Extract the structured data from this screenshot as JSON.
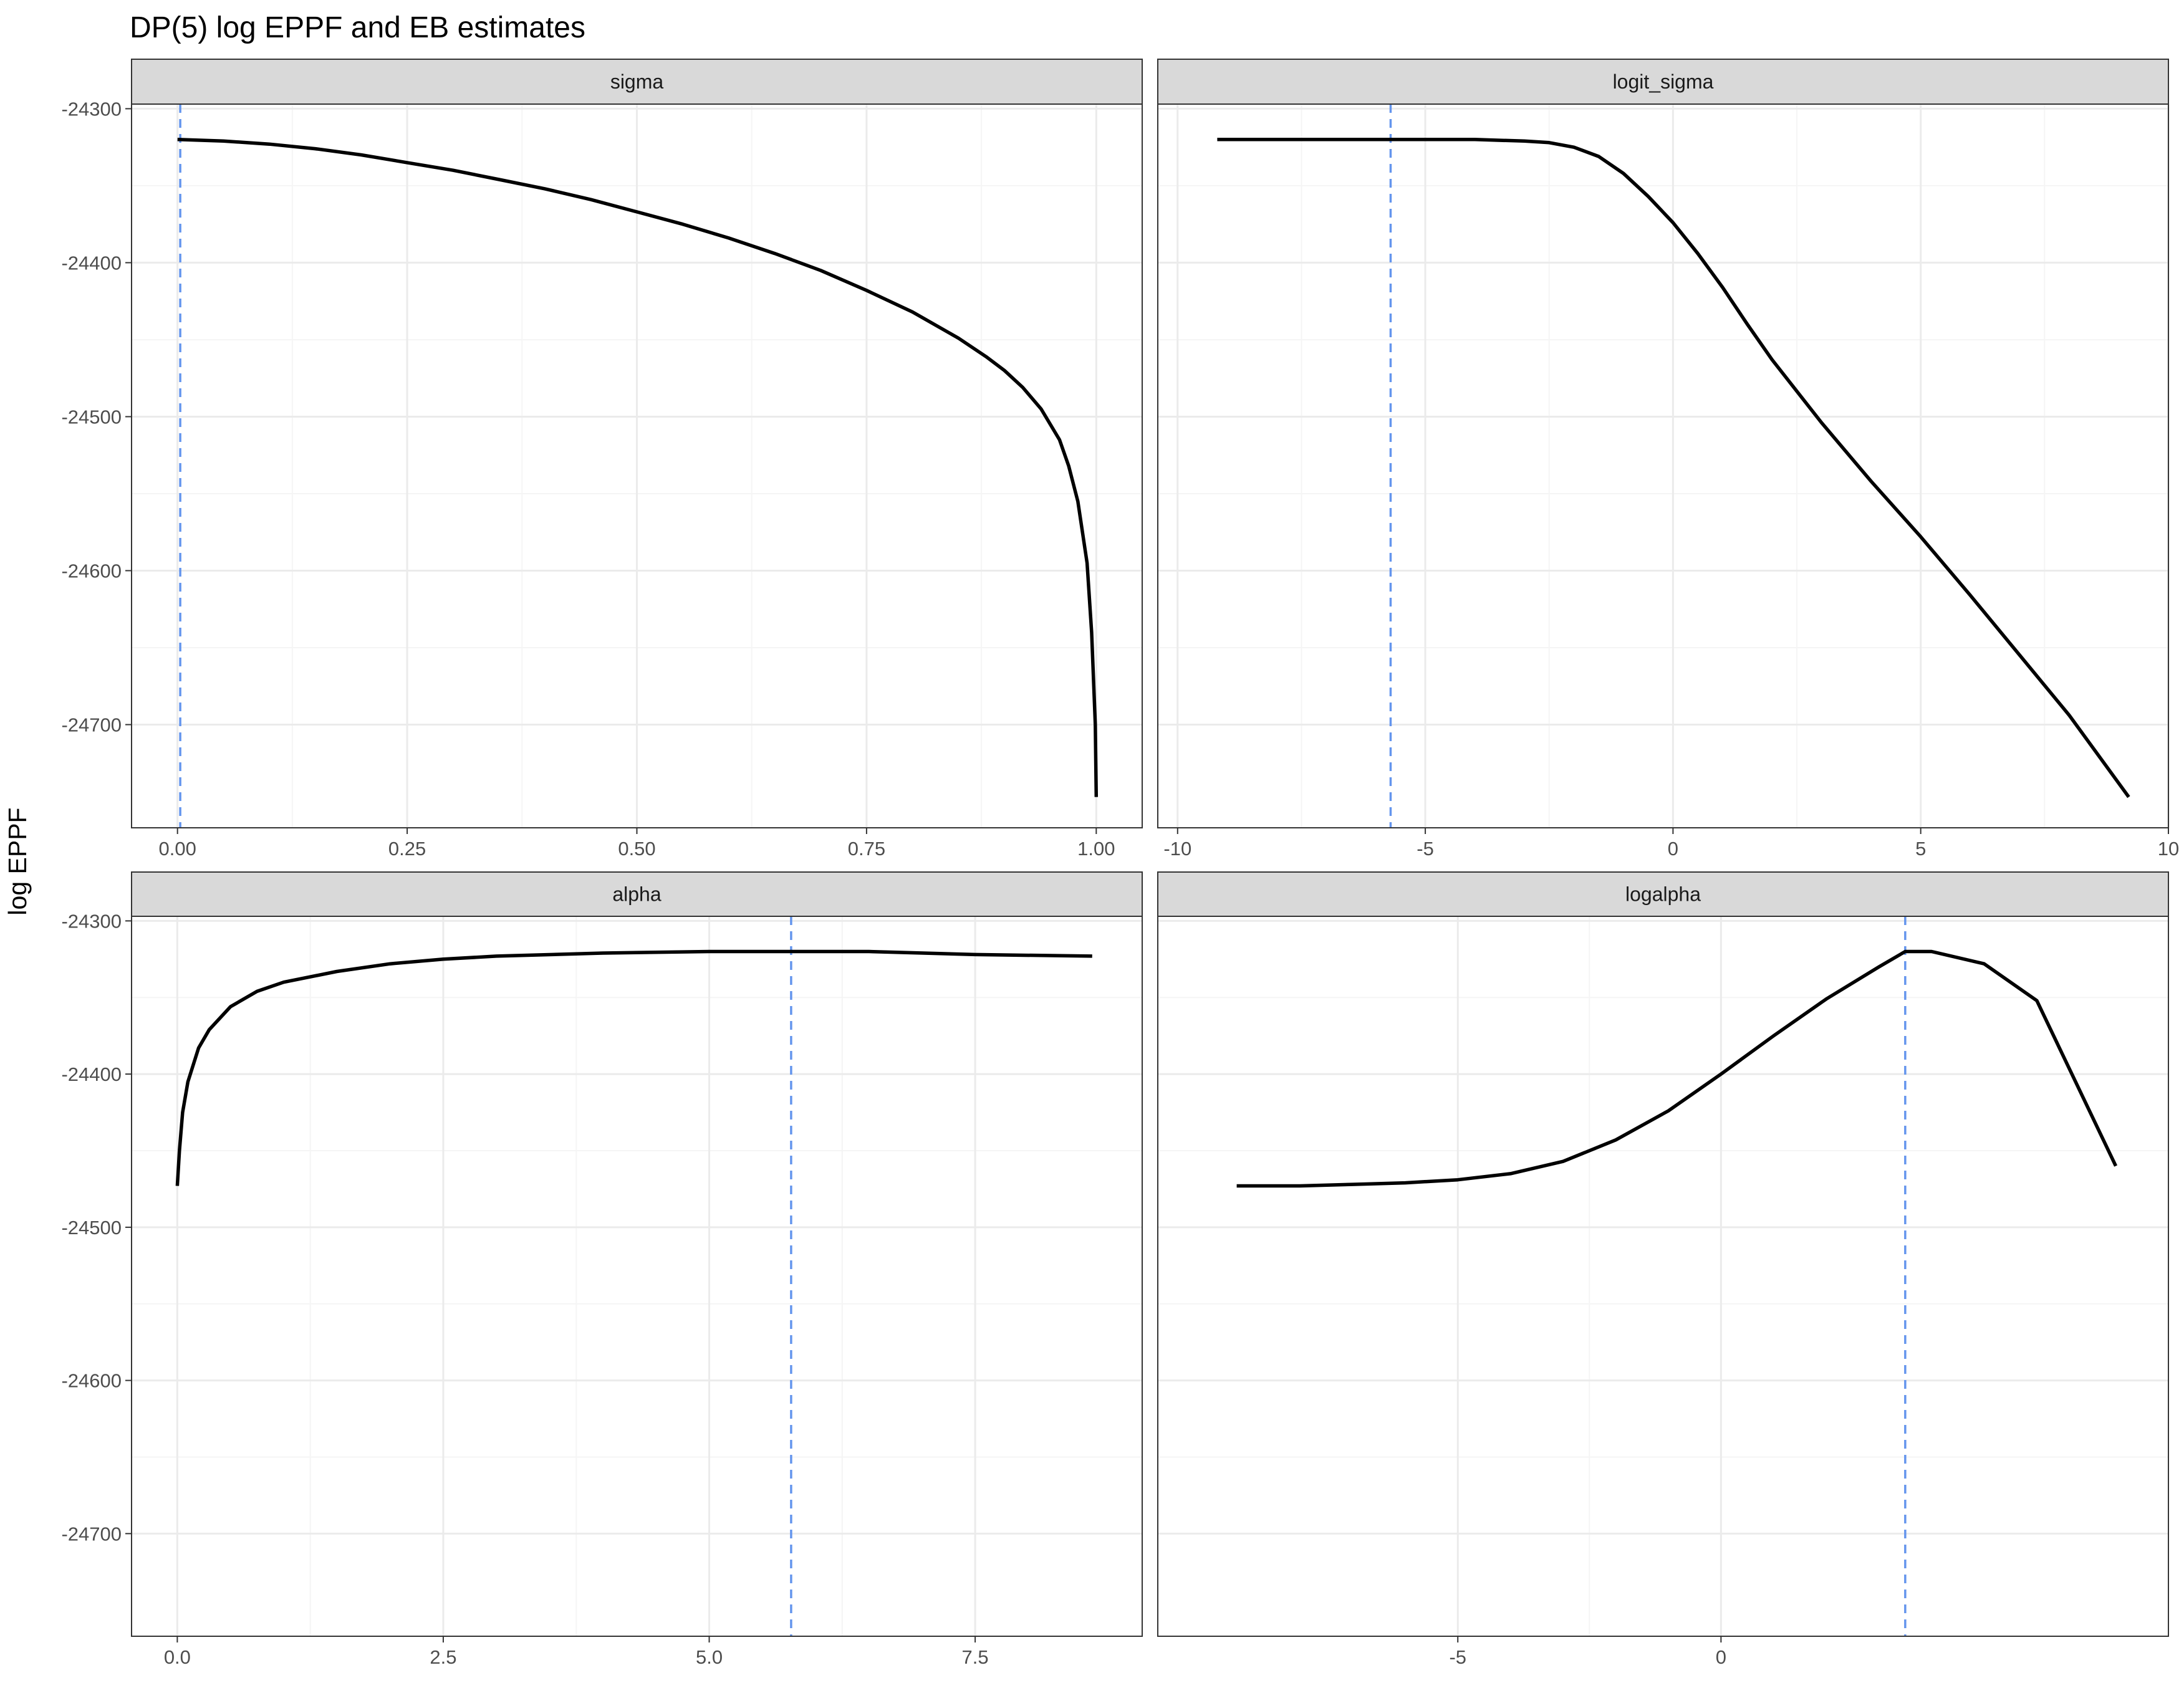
{
  "title": "DP(5) log EPPF and EB estimates",
  "ylabel": "log EPPF",
  "colors": {
    "curve": "#000000",
    "estimate_line": "#6495ED",
    "strip_fill": "#D9D9D9",
    "panel_border": "#333333",
    "grid_major": "#EBEBEB",
    "grid_minor": "#F5F5F5"
  },
  "chart_data": [
    {
      "type": "line",
      "facet": "sigma",
      "ylim": [
        -24767,
        -24297
      ],
      "y_ticks": [
        -24300,
        -24400,
        -24500,
        -24600,
        -24700
      ],
      "xlim": [
        -0.05,
        1.05
      ],
      "x_ticks": [
        0.0,
        0.25,
        0.5,
        0.75,
        1.0
      ],
      "x_tick_labels": [
        "0.00",
        "0.25",
        "0.50",
        "0.75",
        "1.00"
      ],
      "estimate_x": 0.003,
      "x": [
        0.0,
        0.05,
        0.1,
        0.15,
        0.2,
        0.25,
        0.3,
        0.35,
        0.4,
        0.45,
        0.5,
        0.55,
        0.6,
        0.65,
        0.7,
        0.75,
        0.8,
        0.85,
        0.88,
        0.9,
        0.92,
        0.94,
        0.96,
        0.97,
        0.98,
        0.99,
        0.995,
        0.999,
        1.0
      ],
      "y": [
        -24320,
        -24321,
        -24323,
        -24326,
        -24330,
        -24335,
        -24340,
        -24346,
        -24352,
        -24359,
        -24367,
        -24375,
        -24384,
        -24394,
        -24405,
        -24418,
        -24432,
        -24449,
        -24461,
        -24470,
        -24481,
        -24495,
        -24515,
        -24532,
        -24555,
        -24595,
        -24640,
        -24700,
        -24747
      ]
    },
    {
      "type": "line",
      "facet": "logit_sigma",
      "ylim": [
        -24767,
        -24297
      ],
      "y_ticks": [
        -24300,
        -24400,
        -24500,
        -24600,
        -24700
      ],
      "xlim": [
        -10.4,
        10.0
      ],
      "x_ticks": [
        -10,
        -5,
        0,
        5,
        10
      ],
      "x_tick_labels": [
        "-10",
        "-5",
        "0",
        "5",
        "10"
      ],
      "estimate_x": -5.7,
      "x": [
        -9.2,
        -8,
        -6,
        -4,
        -3,
        -2.5,
        -2,
        -1.5,
        -1,
        -0.5,
        0,
        0.5,
        1,
        1.5,
        2,
        3,
        4,
        5,
        6,
        7,
        8,
        9.2
      ],
      "y": [
        -24320,
        -24320,
        -24320,
        -24320,
        -24321,
        -24322,
        -24325,
        -24331,
        -24342,
        -24357,
        -24374,
        -24394,
        -24416,
        -24440,
        -24463,
        -24504,
        -24542,
        -24578,
        -24616,
        -24655,
        -24694,
        -24747
      ]
    },
    {
      "type": "line",
      "facet": "alpha",
      "ylim": [
        -24767,
        -24297
      ],
      "y_ticks": [
        -24300,
        -24400,
        -24500,
        -24600,
        -24700
      ],
      "xlim": [
        -0.43,
        9.07
      ],
      "x_ticks": [
        0,
        2.5,
        5,
        7.5
      ],
      "x_tick_labels": [
        "0.0",
        "2.5",
        "5.0",
        "7.5"
      ],
      "estimate_x": 5.77,
      "x": [
        0.0,
        0.02,
        0.05,
        0.1,
        0.2,
        0.3,
        0.5,
        0.75,
        1,
        1.5,
        2,
        2.5,
        3,
        4,
        5,
        5.77,
        6.5,
        7.5,
        8.6
      ],
      "y": [
        -24473,
        -24450,
        -24425,
        -24405,
        -24383,
        -24371,
        -24356,
        -24346,
        -24340,
        -24333,
        -24328,
        -24325,
        -24323,
        -24321,
        -24320,
        -24320,
        -24320,
        -24322,
        -24323
      ]
    },
    {
      "type": "line",
      "facet": "logalpha",
      "ylim": [
        -24767,
        -24297
      ],
      "y_ticks": [
        -24300,
        -24400,
        -24500,
        -24600,
        -24700
      ],
      "xlim": [
        -10.7,
        8.5
      ],
      "x_ticks": [
        -5,
        0
      ],
      "x_tick_labels": [
        "-5",
        "0"
      ],
      "estimate_x": 3.5,
      "x": [
        -9.2,
        -8,
        -7,
        -6,
        -5,
        -4,
        -3,
        -2,
        -1,
        0,
        1,
        2,
        3,
        3.5,
        4,
        5,
        6,
        7.5
      ],
      "y": [
        -24473,
        -24473,
        -24472,
        -24471,
        -24469,
        -24465,
        -24457,
        -24443,
        -24424,
        -24400,
        -24375,
        -24351,
        -24330,
        -24320,
        -24320,
        -24328,
        -24352,
        -24460
      ]
    }
  ]
}
